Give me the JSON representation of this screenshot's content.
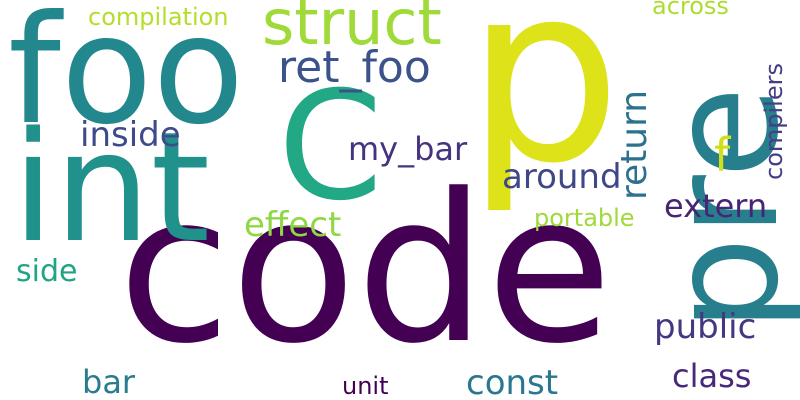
{
  "words": [
    {
      "text": "code",
      "color": "#440154",
      "rotated": false
    },
    {
      "text": "p",
      "color": "#dde318",
      "rotated": false
    },
    {
      "text": "foo",
      "color": "#23888e",
      "rotated": false
    },
    {
      "text": "int",
      "color": "#21918c",
      "rotated": false
    },
    {
      "text": "C",
      "color": "#22a884",
      "rotated": false
    },
    {
      "text": "pre",
      "color": "#277f8e",
      "rotated": true
    },
    {
      "text": "struct",
      "color": "#a0da39",
      "rotated": false
    },
    {
      "text": "ret_foo",
      "color": "#3b528b",
      "rotated": false
    },
    {
      "text": "compilation",
      "color": "#b5de2b",
      "rotated": false
    },
    {
      "text": "across",
      "color": "#addc30",
      "rotated": false
    },
    {
      "text": "return",
      "color": "#2c728e",
      "rotated": true
    },
    {
      "text": "compilers",
      "color": "#433e85",
      "rotated": true
    },
    {
      "text": "f",
      "color": "#d0e11c",
      "rotated": false
    },
    {
      "text": "inside",
      "color": "#3e4a89",
      "rotated": false
    },
    {
      "text": "my_bar",
      "color": "#46327e",
      "rotated": false
    },
    {
      "text": "around",
      "color": "#3f4788",
      "rotated": false
    },
    {
      "text": "extern",
      "color": "#482475",
      "rotated": false
    },
    {
      "text": "effect",
      "color": "#8fd744",
      "rotated": false
    },
    {
      "text": "portable",
      "color": "#9fda3a",
      "rotated": false
    },
    {
      "text": "side",
      "color": "#20a486",
      "rotated": false
    },
    {
      "text": "public",
      "color": "#453781",
      "rotated": false
    },
    {
      "text": "bar",
      "color": "#287c8e",
      "rotated": false
    },
    {
      "text": "const",
      "color": "#2a788e",
      "rotated": false
    },
    {
      "text": "unit",
      "color": "#440154",
      "rotated": false
    },
    {
      "text": "class",
      "color": "#482878",
      "rotated": false
    }
  ]
}
